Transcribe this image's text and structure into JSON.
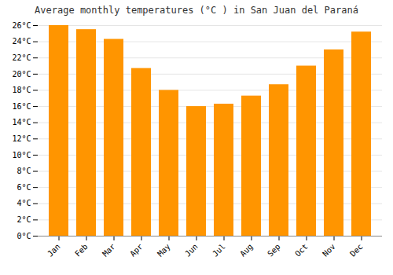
{
  "chart_data": {
    "type": "bar",
    "title": "Average monthly temperatures (°C ) in San Juan del Paraná",
    "categories": [
      "Jan",
      "Feb",
      "Mar",
      "Apr",
      "May",
      "Jun",
      "Jul",
      "Aug",
      "Sep",
      "Oct",
      "Nov",
      "Dec"
    ],
    "values": [
      26.0,
      25.5,
      24.3,
      20.7,
      18.0,
      16.0,
      16.3,
      17.3,
      18.7,
      21.0,
      23.0,
      25.2
    ],
    "color": "#FF9500",
    "ylim": [
      0,
      26
    ],
    "yticks": [
      {
        "value": 0,
        "label": "0°C"
      },
      {
        "value": 2,
        "label": "2°C"
      },
      {
        "value": 4,
        "label": "4°C"
      },
      {
        "value": 6,
        "label": "6°C"
      },
      {
        "value": 8,
        "label": "8°C"
      },
      {
        "value": 10,
        "label": "10°C"
      },
      {
        "value": 12,
        "label": "12°C"
      },
      {
        "value": 14,
        "label": "14°C"
      },
      {
        "value": 16,
        "label": "16°C"
      },
      {
        "value": 18,
        "label": "18°C"
      },
      {
        "value": 20,
        "label": "20°C"
      },
      {
        "value": 22,
        "label": "22°C"
      },
      {
        "value": 24,
        "label": "24°C"
      },
      {
        "value": 26,
        "label": "26°C"
      }
    ],
    "grid": true
  }
}
